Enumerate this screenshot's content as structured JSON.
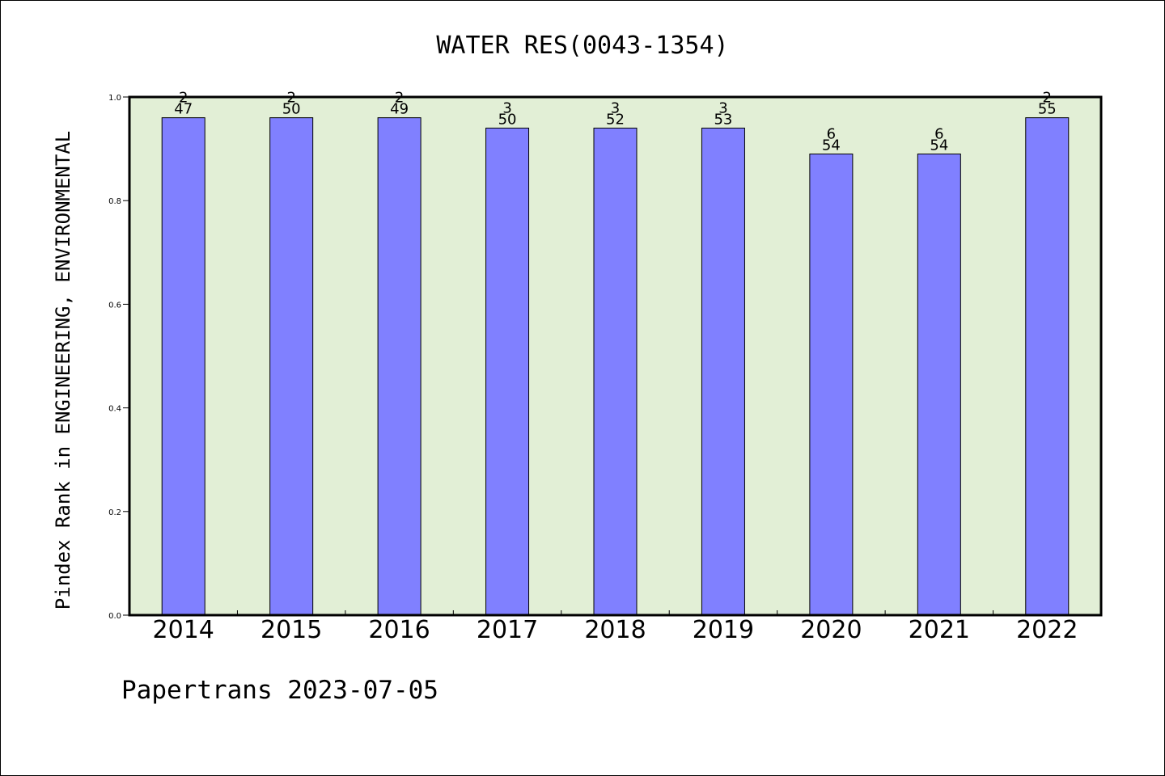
{
  "chart_data": {
    "type": "bar",
    "title": "WATER RES(0043-1354)",
    "xlabel": "",
    "ylabel": "Pindex Rank in ENGINEERING, ENVIRONMENTAL",
    "categories": [
      "2014",
      "2015",
      "2016",
      "2017",
      "2018",
      "2019",
      "2020",
      "2021",
      "2022"
    ],
    "values": [
      0.96,
      0.96,
      0.96,
      0.94,
      0.94,
      0.94,
      0.89,
      0.89,
      0.96
    ],
    "ranks": [
      "2",
      "2",
      "2",
      "3",
      "3",
      "3",
      "6",
      "6",
      "2"
    ],
    "totals": [
      "47",
      "50",
      "49",
      "50",
      "52",
      "53",
      "54",
      "54",
      "55"
    ],
    "ylim": [
      0,
      1.0
    ],
    "yticks": [
      "0.0",
      "0.2",
      "0.4",
      "0.6",
      "0.8",
      "1.0"
    ],
    "grid": false,
    "colors": {
      "bar": "#8080ff",
      "plot_background": "#e2efd6",
      "axis": "#000000"
    }
  },
  "footer": {
    "text": "Papertrans 2023-07-05"
  }
}
